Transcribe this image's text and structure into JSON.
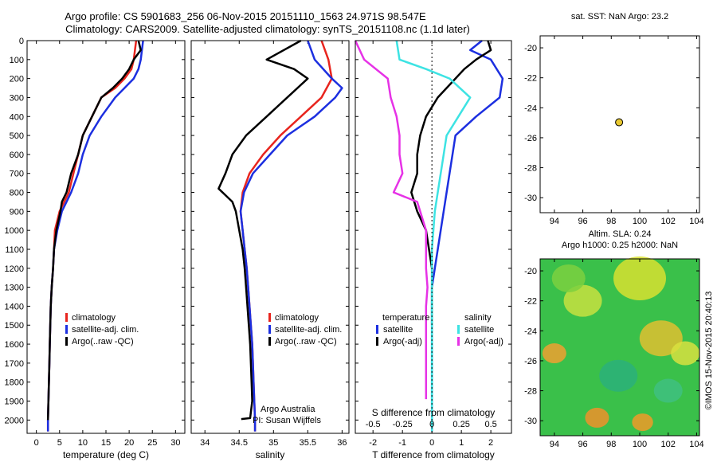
{
  "header": {
    "title_line1": "Argo profile: CS 5901683_256 06-Nov-2015 20151110_1563 24.971S 98.547E",
    "title_line2": "Climatology: CARS2009. Satellite-adjusted climatology: synTS_20151108.nc (1.1d later)"
  },
  "colors": {
    "climatology": "#e8251e",
    "satellite": "#1c2fe0",
    "argo": "#000000",
    "satellite_salinity": "#3de3e3",
    "argo_salinity": "#e632e6",
    "float_marker": "#e8c830"
  },
  "stamp": "©IMOS 15-Nov-2015 20:40:13",
  "chart_data": [
    {
      "type": "line",
      "id": "temperature",
      "xlabel": "temperature (deg C)",
      "ylabel": "",
      "xlim": [
        -2,
        32
      ],
      "ylim": [
        2070,
        0
      ],
      "xticks": [
        0,
        5,
        10,
        15,
        20,
        25,
        30
      ],
      "yticks": [
        0,
        100,
        200,
        300,
        400,
        500,
        600,
        700,
        800,
        900,
        1000,
        1100,
        1200,
        1300,
        1400,
        1500,
        1600,
        1700,
        1800,
        1900,
        2000
      ],
      "legend": [
        "climatology",
        "satellite-adj. clim.",
        "Argo(..raw -QC)"
      ],
      "series": [
        {
          "name": "climatology",
          "color": "#e8251e",
          "points": [
            [
              21.5,
              0
            ],
            [
              21,
              100
            ],
            [
              20.5,
              150
            ],
            [
              19,
              200
            ],
            [
              17,
              250
            ],
            [
              14,
              300
            ],
            [
              12,
              400
            ],
            [
              10,
              500
            ],
            [
              9,
              600
            ],
            [
              8,
              700
            ],
            [
              7,
              800
            ],
            [
              6,
              850
            ],
            [
              5,
              900
            ],
            [
              4,
              1000
            ],
            [
              3.8,
              1100
            ],
            [
              3.6,
              1200
            ],
            [
              3.3,
              1300
            ],
            [
              3.1,
              1400
            ],
            [
              3,
              1500
            ],
            [
              2.9,
              1600
            ],
            [
              2.8,
              1700
            ],
            [
              2.7,
              1800
            ],
            [
              2.6,
              1900
            ],
            [
              2.5,
              2000
            ],
            [
              2.5,
              2060
            ]
          ]
        },
        {
          "name": "satellite-adj. clim.",
          "color": "#1c2fe0",
          "points": [
            [
              23,
              0
            ],
            [
              22.5,
              100
            ],
            [
              22,
              150
            ],
            [
              21,
              200
            ],
            [
              19,
              250
            ],
            [
              17,
              300
            ],
            [
              14,
              400
            ],
            [
              11.5,
              500
            ],
            [
              10,
              600
            ],
            [
              9,
              700
            ],
            [
              7.5,
              800
            ],
            [
              6.5,
              850
            ],
            [
              5.5,
              900
            ],
            [
              4.5,
              1000
            ],
            [
              3.8,
              1100
            ],
            [
              3.6,
              1200
            ],
            [
              3.3,
              1300
            ],
            [
              3.1,
              1400
            ],
            [
              3,
              1500
            ],
            [
              2.9,
              1600
            ],
            [
              2.8,
              1700
            ],
            [
              2.7,
              1800
            ],
            [
              2.6,
              1900
            ],
            [
              2.5,
              2000
            ],
            [
              2.5,
              2060
            ]
          ]
        },
        {
          "name": "Argo(..raw -QC)",
          "color": "#000000",
          "points": [
            [
              22,
              0
            ],
            [
              22.5,
              50
            ],
            [
              21,
              100
            ],
            [
              20,
              150
            ],
            [
              18.5,
              200
            ],
            [
              16.5,
              250
            ],
            [
              14,
              300
            ],
            [
              12,
              400
            ],
            [
              10,
              500
            ],
            [
              9,
              600
            ],
            [
              7.5,
              700
            ],
            [
              6.5,
              800
            ],
            [
              5.5,
              850
            ],
            [
              5.2,
              900
            ],
            [
              4.3,
              1000
            ],
            [
              3.8,
              1100
            ],
            [
              3.6,
              1200
            ],
            [
              3.3,
              1300
            ],
            [
              3.1,
              1400
            ],
            [
              3,
              1500
            ],
            [
              2.9,
              1600
            ],
            [
              2.8,
              1700
            ],
            [
              2.7,
              1800
            ],
            [
              2.6,
              1900
            ],
            [
              2.5,
              2000
            ]
          ]
        }
      ]
    },
    {
      "type": "line",
      "id": "salinity",
      "xlabel": "salinity",
      "ylabel": "",
      "xlim": [
        33.8,
        36.1
      ],
      "ylim": [
        2070,
        0
      ],
      "xticks": [
        34,
        34.5,
        35,
        35.5,
        36
      ],
      "legend": [
        "climatology",
        "satellite-adj. clim.",
        "Argo(..raw -QC)"
      ],
      "annotation": [
        "Argo Australia",
        "PI: Susan Wijffels"
      ],
      "series": [
        {
          "name": "climatology",
          "color": "#e8251e",
          "points": [
            [
              35.7,
              0
            ],
            [
              35.8,
              100
            ],
            [
              35.85,
              200
            ],
            [
              35.7,
              300
            ],
            [
              35.4,
              400
            ],
            [
              35.1,
              500
            ],
            [
              34.85,
              600
            ],
            [
              34.65,
              700
            ],
            [
              34.55,
              800
            ],
            [
              34.52,
              900
            ],
            [
              34.55,
              1000
            ],
            [
              34.58,
              1100
            ],
            [
              34.61,
              1200
            ],
            [
              34.63,
              1300
            ],
            [
              34.65,
              1400
            ],
            [
              34.67,
              1500
            ],
            [
              34.69,
              1600
            ],
            [
              34.7,
              1700
            ],
            [
              34.71,
              1800
            ],
            [
              34.72,
              1900
            ],
            [
              34.73,
              2000
            ],
            [
              34.73,
              2060
            ]
          ]
        },
        {
          "name": "satellite-adj. clim.",
          "color": "#1c2fe0",
          "points": [
            [
              35.5,
              0
            ],
            [
              35.6,
              100
            ],
            [
              35.85,
              200
            ],
            [
              36,
              250
            ],
            [
              35.9,
              300
            ],
            [
              35.6,
              400
            ],
            [
              35.2,
              500
            ],
            [
              34.95,
              600
            ],
            [
              34.7,
              700
            ],
            [
              34.57,
              800
            ],
            [
              34.52,
              900
            ],
            [
              34.55,
              1000
            ],
            [
              34.58,
              1100
            ],
            [
              34.61,
              1200
            ],
            [
              34.63,
              1300
            ],
            [
              34.65,
              1400
            ],
            [
              34.67,
              1500
            ],
            [
              34.69,
              1600
            ],
            [
              34.7,
              1700
            ],
            [
              34.71,
              1800
            ],
            [
              34.72,
              1900
            ],
            [
              34.73,
              2000
            ],
            [
              34.73,
              2060
            ]
          ]
        },
        {
          "name": "Argo(..raw -QC)",
          "color": "#000000",
          "points": [
            [
              35.4,
              0
            ],
            [
              34.9,
              100
            ],
            [
              35.3,
              150
            ],
            [
              35.5,
              200
            ],
            [
              35.2,
              300
            ],
            [
              34.9,
              400
            ],
            [
              34.6,
              500
            ],
            [
              34.4,
              600
            ],
            [
              34.3,
              700
            ],
            [
              34.2,
              780
            ],
            [
              34.4,
              850
            ],
            [
              34.45,
              900
            ],
            [
              34.5,
              1000
            ],
            [
              34.55,
              1100
            ],
            [
              34.58,
              1200
            ],
            [
              34.6,
              1300
            ],
            [
              34.62,
              1400
            ],
            [
              34.64,
              1500
            ],
            [
              34.66,
              1600
            ],
            [
              34.67,
              1700
            ],
            [
              34.68,
              1800
            ],
            [
              34.69,
              1900
            ],
            [
              34.66,
              1990
            ],
            [
              34.53,
              1995
            ]
          ]
        }
      ]
    },
    {
      "type": "line",
      "id": "difference",
      "xlabel": "T difference from climatology",
      "xlabel2": "S difference from climatology",
      "xlim": [
        -2.6,
        2.7
      ],
      "ylim": [
        2070,
        0
      ],
      "xticks": [
        -2,
        -1,
        0,
        1,
        2
      ],
      "xticks2": [
        "-0.5",
        "-0.25",
        "0",
        "0.25",
        "0.5"
      ],
      "legend_title_t": "temperature",
      "legend_title_s": "salinity",
      "legend": [
        "satellite",
        "Argo(-adj)",
        "satellite",
        "Argo(-adj)"
      ],
      "series": [
        {
          "name": "T satellite",
          "color": "#1c2fe0",
          "points": [
            [
              1.7,
              0
            ],
            [
              1.3,
              50
            ],
            [
              2,
              100
            ],
            [
              2.4,
              200
            ],
            [
              2.3,
              300
            ],
            [
              1.5,
              400
            ],
            [
              0.8,
              500
            ],
            [
              0.7,
              600
            ],
            [
              0.6,
              700
            ],
            [
              0.5,
              800
            ],
            [
              0.4,
              900
            ],
            [
              0.3,
              1000
            ],
            [
              0.2,
              1100
            ],
            [
              0.1,
              1200
            ],
            [
              0,
              1300
            ],
            [
              0,
              2060
            ]
          ]
        },
        {
          "name": "T Argo(-adj)",
          "color": "#000000",
          "points": [
            [
              1.9,
              0
            ],
            [
              2,
              50
            ],
            [
              1.5,
              100
            ],
            [
              1.1,
              150
            ],
            [
              0.8,
              200
            ],
            [
              0.2,
              300
            ],
            [
              -0.2,
              400
            ],
            [
              -0.4,
              500
            ],
            [
              -0.5,
              600
            ],
            [
              -0.5,
              700
            ],
            [
              -0.7,
              800
            ],
            [
              -0.5,
              900
            ],
            [
              -0.2,
              1000
            ],
            [
              -0.1,
              1100
            ],
            [
              0,
              1200
            ],
            [
              0,
              1500
            ]
          ]
        },
        {
          "name": "S satellite",
          "color": "#3de3e3",
          "points": [
            [
              -1.2,
              0
            ],
            [
              -1.1,
              100
            ],
            [
              -0.2,
              150
            ],
            [
              0.6,
              200
            ],
            [
              1.3,
              300
            ],
            [
              0.9,
              400
            ],
            [
              0.5,
              500
            ],
            [
              0.4,
              600
            ],
            [
              0.3,
              700
            ],
            [
              0.2,
              800
            ],
            [
              0.1,
              900
            ],
            [
              0.05,
              1000
            ],
            [
              0,
              1100
            ],
            [
              0,
              2060
            ]
          ]
        },
        {
          "name": "S Argo(-adj)",
          "color": "#e632e6",
          "points": [
            [
              -2.6,
              0
            ],
            [
              -2.3,
              100
            ],
            [
              -1.5,
              200
            ],
            [
              -1.4,
              300
            ],
            [
              -1.2,
              400
            ],
            [
              -1.1,
              500
            ],
            [
              -1.1,
              600
            ],
            [
              -1.0,
              700
            ],
            [
              -1.3,
              800
            ],
            [
              -0.5,
              850
            ],
            [
              -0.4,
              900
            ],
            [
              -0.2,
              1000
            ],
            [
              -0.2,
              1100
            ],
            [
              -0.2,
              1200
            ],
            [
              -0.15,
              1300
            ],
            [
              -0.2,
              1400
            ],
            [
              -0.2,
              1500
            ],
            [
              -0.2,
              1600
            ],
            [
              -0.2,
              1700
            ],
            [
              -0.2,
              1800
            ],
            [
              -0.2,
              1890
            ]
          ]
        }
      ]
    },
    {
      "type": "scatter",
      "id": "sst-map",
      "title": "sat. SST: NaN Argo: 23.2",
      "xlim": [
        93,
        104.2
      ],
      "ylim": [
        -31,
        -19.2
      ],
      "xticks": [
        94,
        96,
        98,
        100,
        102,
        104
      ],
      "yticks": [
        -20,
        -22,
        -24,
        -26,
        -28,
        -30
      ],
      "points": [
        [
          98.55,
          -24.97
        ]
      ]
    },
    {
      "type": "heatmap",
      "id": "sla-map",
      "title_line1": "Altim. SLA: 0.24",
      "title_line2": "Argo h1000: 0.25 h2000: NaN",
      "xlim": [
        93,
        104.2
      ],
      "ylim": [
        -31,
        -19.2
      ],
      "xticks": [
        94,
        96,
        98,
        100,
        102,
        104
      ],
      "yticks": [
        -20,
        -22,
        -24,
        -26,
        -28,
        -30
      ]
    }
  ]
}
